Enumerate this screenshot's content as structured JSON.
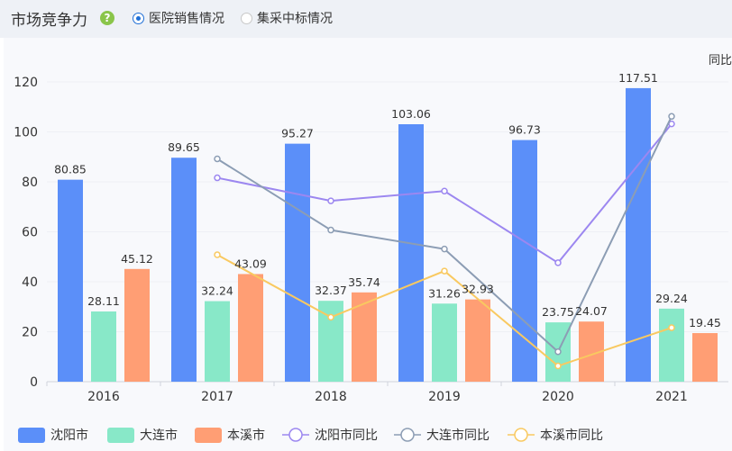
{
  "header": {
    "title": "市场竞争力",
    "help_icon": "?",
    "radio_options": [
      {
        "label": "医院销售情况",
        "selected": true
      },
      {
        "label": "集采中标情况",
        "selected": false
      }
    ]
  },
  "top_right_label": "同比",
  "chart_data": {
    "type": "bar",
    "categories": [
      "2016",
      "2017",
      "2018",
      "2019",
      "2020",
      "2021"
    ],
    "ylim": [
      0,
      120
    ],
    "yticks": [
      0,
      20,
      40,
      60,
      80,
      100,
      120
    ],
    "series": [
      {
        "name": "沈阳市",
        "type": "bar",
        "color": "#5b8ff9",
        "values": [
          80.85,
          89.65,
          95.27,
          103.06,
          96.73,
          117.51
        ]
      },
      {
        "name": "大连市",
        "type": "bar",
        "color": "#88e8c8",
        "values": [
          28.11,
          32.24,
          32.37,
          31.26,
          23.75,
          29.24
        ]
      },
      {
        "name": "本溪市",
        "type": "bar",
        "color": "#ff9e74",
        "values": [
          45.12,
          43.09,
          35.74,
          32.93,
          24.07,
          19.45
        ]
      },
      {
        "name": "沈阳市同比",
        "type": "line",
        "color": "#9c87f0",
        "values": [
          null,
          81.6,
          72.4,
          76.3,
          47.6,
          103.2
        ]
      },
      {
        "name": "大连市同比",
        "type": "line",
        "color": "#8c9db4",
        "values": [
          null,
          89.2,
          60.7,
          53.1,
          12.0,
          106.2
        ]
      },
      {
        "name": "本溪市同比",
        "type": "line",
        "color": "#f9c960",
        "values": [
          null,
          50.8,
          25.8,
          44.3,
          6.3,
          21.6
        ]
      }
    ],
    "legend_position": "bottom",
    "grid": true
  }
}
